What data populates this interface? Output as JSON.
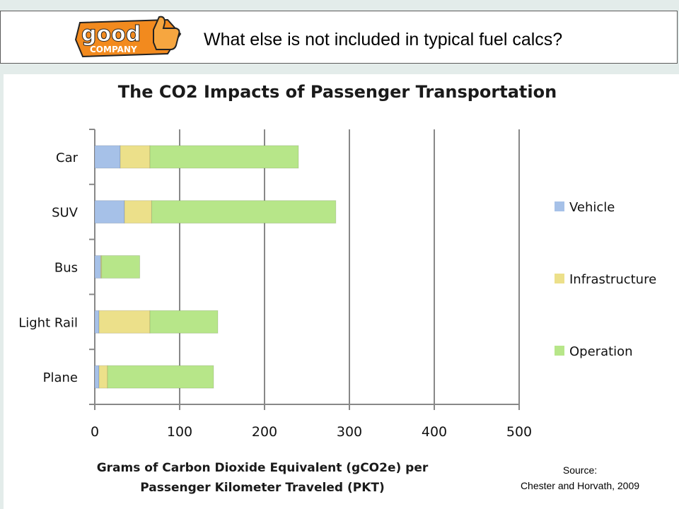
{
  "header": {
    "title": "What else is not included in typical fuel calcs?",
    "logo_text_top": "good",
    "logo_text_bottom": "COMPANY"
  },
  "colors": {
    "vehicle": "#a6c1e8",
    "infrastructure": "#ece08a",
    "operation": "#b7e689",
    "grid": "#888888",
    "logo_orange": "#f28a1e"
  },
  "chart_data": {
    "type": "bar",
    "orientation": "horizontal",
    "stacked": true,
    "title": "The CO2 Impacts of Passenger Transportation",
    "xlabel_lines": [
      "Grams of Carbon Dioxide Equivalent (gCO2e) per",
      "Passenger Kilometer Traveled (PKT)"
    ],
    "categories": [
      "Car",
      "SUV",
      "Bus",
      "Light Rail",
      "Plane"
    ],
    "series": [
      {
        "name": "Vehicle",
        "values": [
          30,
          35,
          7,
          5,
          5
        ]
      },
      {
        "name": "Infrastructure",
        "values": [
          35,
          32,
          1,
          60,
          10
        ]
      },
      {
        "name": "Operation",
        "values": [
          175,
          217,
          45,
          80,
          125
        ]
      }
    ],
    "xlim": [
      0,
      500
    ],
    "xticks": [
      "0",
      "100",
      "200",
      "300",
      "400",
      "500"
    ],
    "grid": true,
    "legend_position": "right"
  },
  "source": {
    "line1": "Source:",
    "line2": "Chester and Horvath, 2009"
  }
}
